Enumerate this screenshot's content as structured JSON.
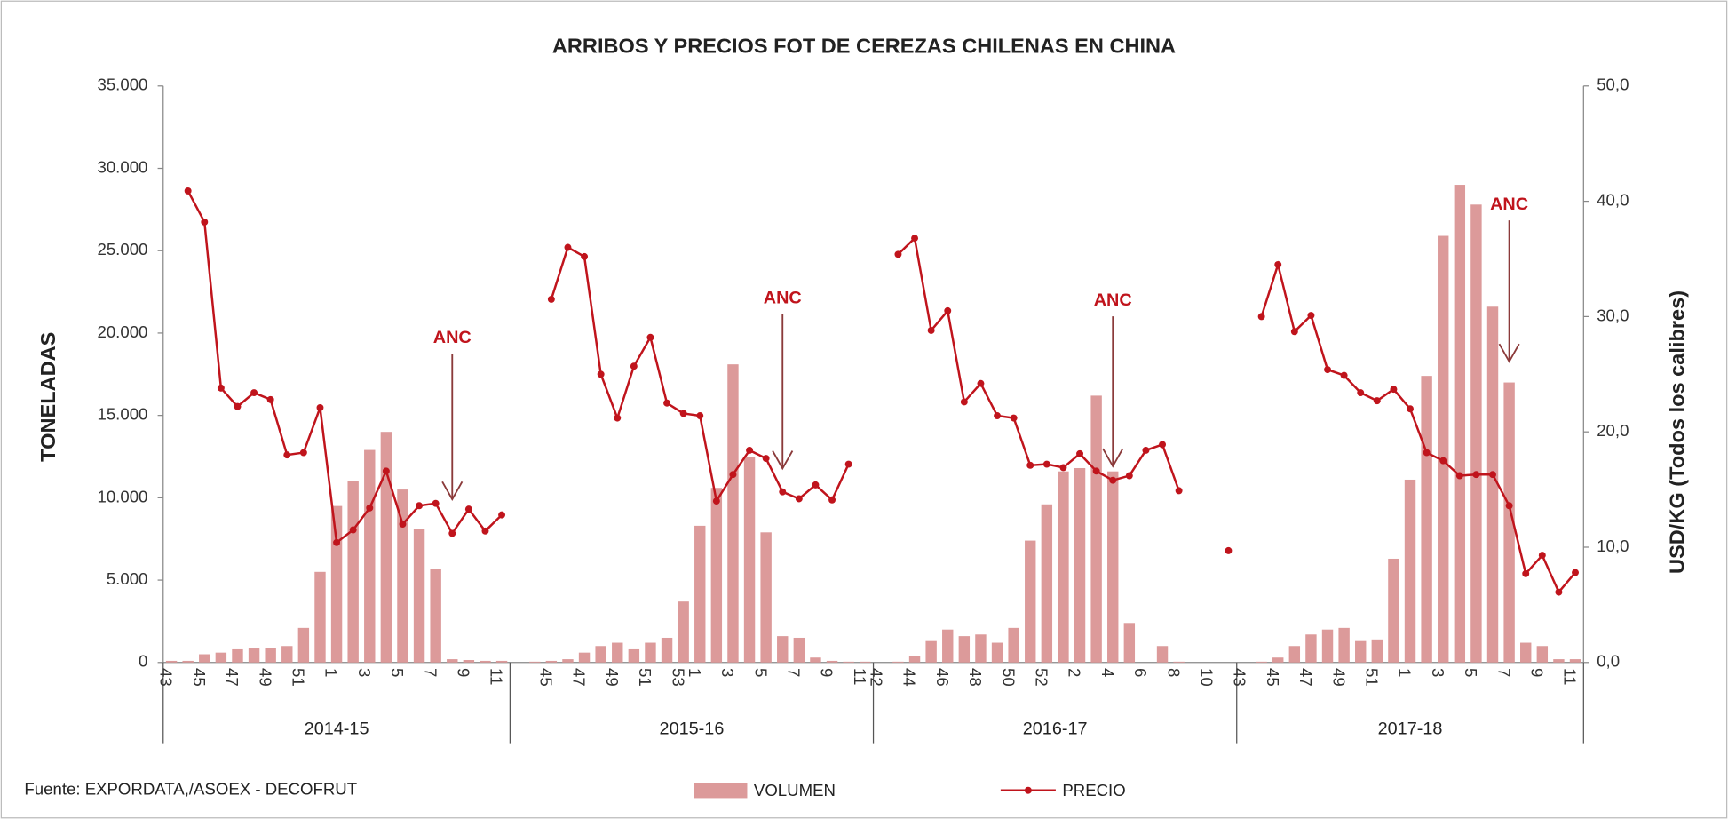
{
  "chart_data": {
    "type": "bar-line",
    "title": "ARRIBOS Y PRECIOS FOT DE CEREZAS CHILENAS EN CHINA",
    "ylabel": "TONELADAS",
    "y2label": "USD/KG (Todos los calibres)",
    "source": "Fuente: EXPORDATA,/ASOEX -  DECOFRUT",
    "ylim": [
      0,
      35000
    ],
    "yticks": [
      0,
      {
        "value": 5000,
        "label": "5.000"
      },
      {
        "value": 10000,
        "label": "10.000"
      },
      {
        "value": 15000,
        "label": "15.000"
      },
      {
        "value": 20000,
        "label": "20.000"
      },
      {
        "value": 25000,
        "label": "25.000"
      },
      {
        "value": 30000,
        "label": "30.000"
      },
      {
        "value": 35000,
        "label": "35.000"
      }
    ],
    "y2lim": [
      0,
      50
    ],
    "y2ticks": [
      {
        "value": 0,
        "label": "0,0"
      },
      {
        "value": 10,
        "label": "10,0"
      },
      {
        "value": 20,
        "label": "20,0"
      },
      {
        "value": 30,
        "label": "30,0"
      },
      {
        "value": 40,
        "label": "40,0"
      },
      {
        "value": 50,
        "label": "50,0"
      }
    ],
    "series": [
      {
        "name": "VOLUMEN",
        "color": "#dc9a9a"
      },
      {
        "name": "PRECIO",
        "color": "#c0141c",
        "axis": "y2"
      }
    ],
    "groups": [
      {
        "name": "2014-15",
        "annotation": "ANC",
        "categories": [
          "43",
          null,
          "45",
          null,
          "47",
          null,
          "49",
          null,
          "51",
          null,
          "1",
          null,
          "3",
          null,
          "5",
          null,
          "7",
          null,
          "9",
          null,
          "11"
        ],
        "series": [
          {
            "values": [
              100,
              100,
              500,
              600,
              800,
              850,
              900,
              1000,
              2100,
              5500,
              9500,
              11000,
              12900,
              14000,
              10500,
              8100,
              5700,
              200,
              150,
              100,
              100
            ]
          },
          {
            "values": [
              null,
              40.9,
              38.2,
              23.8,
              22.2,
              23.4,
              22.8,
              18.0,
              18.2,
              22.1,
              10.4,
              11.5,
              13.4,
              16.6,
              12.0,
              13.6,
              13.8,
              11.2,
              13.3,
              11.4,
              12.8
            ]
          }
        ]
      },
      {
        "name": "2015-16",
        "annotation": "ANC",
        "categories": [
          null,
          null,
          "45",
          null,
          "47",
          null,
          "49",
          null,
          "51",
          null,
          "53",
          "1",
          null,
          "3",
          null,
          "5",
          null,
          "7",
          null,
          "9",
          null,
          "11"
        ],
        "series": [
          {
            "values": [
              0,
              50,
              100,
              200,
              600,
              1000,
              1200,
              800,
              1200,
              1500,
              3700,
              8300,
              10600,
              18100,
              12500,
              7900,
              1600,
              1500,
              300,
              100,
              50,
              50
            ]
          },
          {
            "values": [
              null,
              null,
              31.5,
              36.0,
              35.2,
              25.0,
              21.2,
              25.7,
              28.2,
              22.5,
              21.6,
              21.4,
              14.0,
              16.3,
              18.4,
              17.7,
              14.8,
              14.2,
              15.4,
              14.1,
              17.2,
              null
            ]
          }
        ]
      },
      {
        "name": "2016-17",
        "annotation": "ANC",
        "categories": [
          "42",
          null,
          "44",
          null,
          "46",
          null,
          "48",
          null,
          "50",
          null,
          "52",
          null,
          "2",
          null,
          "4",
          null,
          "6",
          null,
          "8",
          null,
          "10",
          null
        ],
        "series": [
          {
            "values": [
              0,
              50,
              400,
              1300,
              2000,
              1600,
              1700,
              1200,
              2100,
              7400,
              9600,
              11600,
              11800,
              16200,
              11600,
              2400,
              0,
              1000,
              50,
              0,
              0,
              0
            ]
          },
          {
            "values": [
              null,
              35.4,
              36.8,
              28.8,
              30.5,
              22.6,
              24.2,
              21.4,
              21.2,
              17.1,
              17.2,
              16.9,
              18.1,
              16.6,
              15.8,
              16.2,
              18.4,
              18.9,
              14.9,
              null,
              null,
              9.7
            ]
          }
        ]
      },
      {
        "name": "2017-18",
        "annotation": "ANC",
        "categories": [
          "43",
          null,
          "45",
          null,
          "47",
          null,
          "49",
          null,
          "51",
          null,
          "1",
          null,
          "3",
          null,
          "5",
          null,
          "7",
          null,
          "9",
          null,
          "11"
        ],
        "series": [
          {
            "values": [
              0,
              50,
              300,
              1000,
              1700,
              2000,
              2100,
              1300,
              1400,
              6300,
              11100,
              17400,
              25900,
              29000,
              27800,
              21600,
              17000,
              1200,
              1000,
              200,
              200
            ]
          },
          {
            "values": [
              null,
              30.0,
              34.5,
              28.7,
              30.1,
              25.4,
              24.9,
              23.4,
              22.7,
              23.7,
              22.0,
              18.2,
              17.5,
              16.2,
              16.3,
              16.3,
              13.6,
              7.7,
              9.3,
              6.1,
              7.8
            ]
          }
        ]
      }
    ]
  }
}
